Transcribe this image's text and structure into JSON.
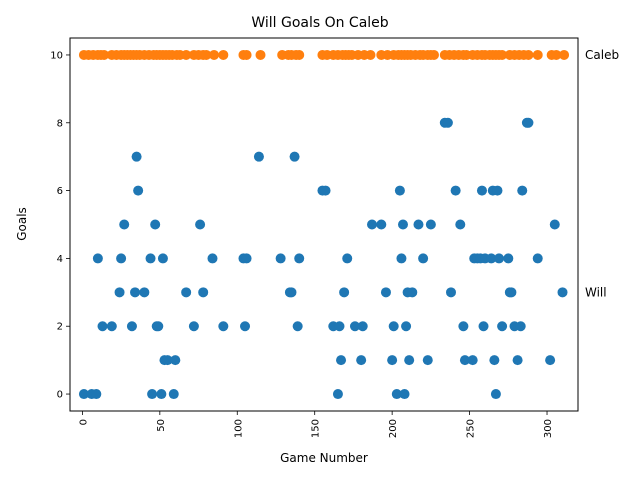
{
  "chart_data": {
    "type": "scatter",
    "title": "Will Goals On Caleb",
    "xlabel": "Game Number",
    "ylabel": "Goals",
    "xlim": [
      -8,
      320
    ],
    "ylim": [
      -0.5,
      10.5
    ],
    "xticks": [
      0,
      50,
      100,
      150,
      200,
      250,
      300
    ],
    "yticks": [
      0,
      2,
      4,
      6,
      8,
      10
    ],
    "xtick_rotation": 90,
    "grid": false,
    "legend": "none",
    "series": [
      {
        "name": "Caleb",
        "color": "#ff7f0e",
        "points": [
          [
            1,
            10
          ],
          [
            4,
            10
          ],
          [
            7,
            10
          ],
          [
            10,
            10
          ],
          [
            12,
            10
          ],
          [
            14,
            10
          ],
          [
            19,
            10
          ],
          [
            22,
            10
          ],
          [
            25,
            10
          ],
          [
            27,
            10
          ],
          [
            29,
            10
          ],
          [
            31,
            10
          ],
          [
            33,
            10
          ],
          [
            35,
            10
          ],
          [
            37,
            10
          ],
          [
            40,
            10
          ],
          [
            43,
            10
          ],
          [
            46,
            10
          ],
          [
            48,
            10
          ],
          [
            50,
            10
          ],
          [
            52,
            10
          ],
          [
            54,
            10
          ],
          [
            56,
            10
          ],
          [
            58,
            10
          ],
          [
            61,
            10
          ],
          [
            63,
            10
          ],
          [
            67,
            10
          ],
          [
            72,
            10
          ],
          [
            75,
            10
          ],
          [
            78,
            10
          ],
          [
            80,
            10
          ],
          [
            85,
            10
          ],
          [
            91,
            10
          ],
          [
            104,
            10
          ],
          [
            106,
            10
          ],
          [
            115,
            10
          ],
          [
            129,
            10
          ],
          [
            133,
            10
          ],
          [
            135,
            10
          ],
          [
            138,
            10
          ],
          [
            140,
            10
          ],
          [
            155,
            10
          ],
          [
            158,
            10
          ],
          [
            162,
            10
          ],
          [
            165,
            10
          ],
          [
            168,
            10
          ],
          [
            170,
            10
          ],
          [
            172,
            10
          ],
          [
            174,
            10
          ],
          [
            178,
            10
          ],
          [
            182,
            10
          ],
          [
            186,
            10
          ],
          [
            193,
            10
          ],
          [
            197,
            10
          ],
          [
            201,
            10
          ],
          [
            204,
            10
          ],
          [
            206,
            10
          ],
          [
            208,
            10
          ],
          [
            210,
            10
          ],
          [
            212,
            10
          ],
          [
            215,
            10
          ],
          [
            218,
            10
          ],
          [
            220,
            10
          ],
          [
            223,
            10
          ],
          [
            225,
            10
          ],
          [
            227,
            10
          ],
          [
            234,
            10
          ],
          [
            237,
            10
          ],
          [
            240,
            10
          ],
          [
            243,
            10
          ],
          [
            246,
            10
          ],
          [
            248,
            10
          ],
          [
            252,
            10
          ],
          [
            255,
            10
          ],
          [
            258,
            10
          ],
          [
            260,
            10
          ],
          [
            263,
            10
          ],
          [
            265,
            10
          ],
          [
            267,
            10
          ],
          [
            269,
            10
          ],
          [
            271,
            10
          ],
          [
            276,
            10
          ],
          [
            279,
            10
          ],
          [
            282,
            10
          ],
          [
            285,
            10
          ],
          [
            288,
            10
          ],
          [
            294,
            10
          ],
          [
            303,
            10
          ],
          [
            306,
            10
          ],
          [
            311,
            10
          ]
        ]
      },
      {
        "name": "Will",
        "color": "#1f77b4",
        "points": [
          [
            1,
            0
          ],
          [
            6,
            0
          ],
          [
            9,
            0
          ],
          [
            10,
            4
          ],
          [
            13,
            2
          ],
          [
            19,
            2
          ],
          [
            24,
            3
          ],
          [
            25,
            4
          ],
          [
            27,
            5
          ],
          [
            32,
            2
          ],
          [
            34,
            3
          ],
          [
            35,
            7
          ],
          [
            36,
            6
          ],
          [
            40,
            3
          ],
          [
            44,
            4
          ],
          [
            45,
            0
          ],
          [
            47,
            5
          ],
          [
            48,
            2
          ],
          [
            49,
            2
          ],
          [
            51,
            0
          ],
          [
            52,
            4
          ],
          [
            53,
            1
          ],
          [
            55,
            1
          ],
          [
            59,
            0
          ],
          [
            60,
            1
          ],
          [
            67,
            3
          ],
          [
            72,
            2
          ],
          [
            76,
            5
          ],
          [
            78,
            3
          ],
          [
            84,
            4
          ],
          [
            91,
            2
          ],
          [
            104,
            4
          ],
          [
            105,
            2
          ],
          [
            106,
            4
          ],
          [
            114,
            7
          ],
          [
            128,
            4
          ],
          [
            134,
            3
          ],
          [
            135,
            3
          ],
          [
            137,
            7
          ],
          [
            139,
            2
          ],
          [
            140,
            4
          ],
          [
            155,
            6
          ],
          [
            157,
            6
          ],
          [
            162,
            2
          ],
          [
            165,
            0
          ],
          [
            166,
            2
          ],
          [
            167,
            1
          ],
          [
            169,
            3
          ],
          [
            171,
            4
          ],
          [
            176,
            2
          ],
          [
            180,
            1
          ],
          [
            181,
            2
          ],
          [
            187,
            5
          ],
          [
            193,
            5
          ],
          [
            196,
            3
          ],
          [
            200,
            1
          ],
          [
            201,
            2
          ],
          [
            203,
            0
          ],
          [
            205,
            6
          ],
          [
            206,
            4
          ],
          [
            207,
            5
          ],
          [
            208,
            0
          ],
          [
            209,
            2
          ],
          [
            210,
            3
          ],
          [
            211,
            1
          ],
          [
            213,
            3
          ],
          [
            217,
            5
          ],
          [
            220,
            4
          ],
          [
            223,
            1
          ],
          [
            225,
            5
          ],
          [
            234,
            8
          ],
          [
            236,
            8
          ],
          [
            238,
            3
          ],
          [
            241,
            6
          ],
          [
            244,
            5
          ],
          [
            246,
            2
          ],
          [
            247,
            1
          ],
          [
            252,
            1
          ],
          [
            253,
            4
          ],
          [
            255,
            4
          ],
          [
            257,
            4
          ],
          [
            258,
            6
          ],
          [
            259,
            2
          ],
          [
            260,
            4
          ],
          [
            264,
            4
          ],
          [
            265,
            6
          ],
          [
            266,
            1
          ],
          [
            267,
            0
          ],
          [
            268,
            6
          ],
          [
            269,
            4
          ],
          [
            271,
            2
          ],
          [
            275,
            4
          ],
          [
            276,
            3
          ],
          [
            277,
            3
          ],
          [
            279,
            2
          ],
          [
            281,
            1
          ],
          [
            283,
            2
          ],
          [
            284,
            6
          ],
          [
            287,
            8
          ],
          [
            288,
            8
          ],
          [
            294,
            4
          ],
          [
            302,
            1
          ],
          [
            305,
            5
          ],
          [
            310,
            3
          ]
        ]
      }
    ],
    "end_labels": [
      {
        "text": "Caleb",
        "y": 10
      },
      {
        "text": "Will",
        "y": 3
      }
    ]
  }
}
